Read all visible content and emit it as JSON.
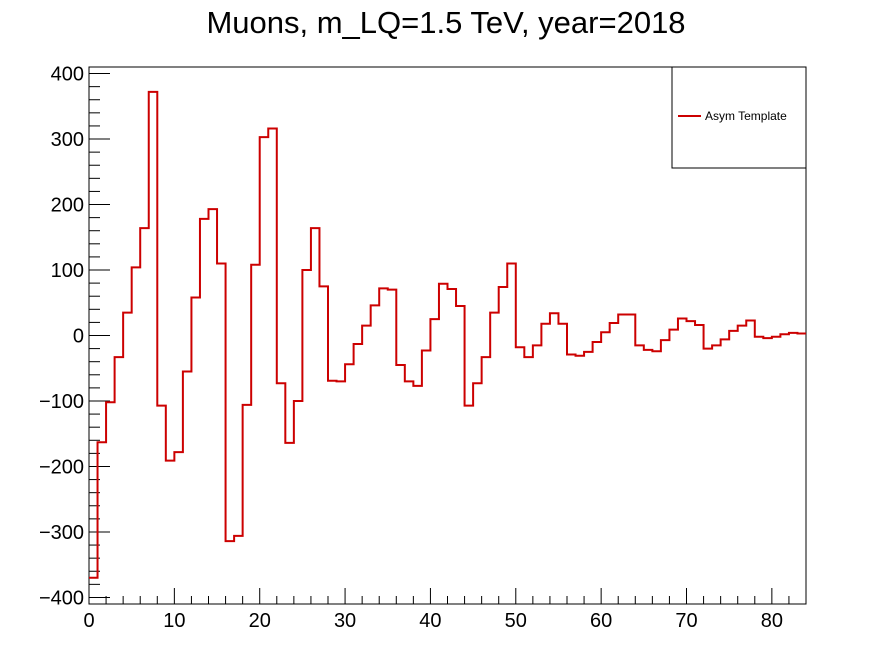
{
  "chart_data": {
    "type": "histogram-step",
    "title": "Muons, m_LQ=1.5 TeV, year=2018",
    "xlabel": "",
    "ylabel": "",
    "xlim": [
      0,
      84
    ],
    "ylim": [
      -410,
      410
    ],
    "x_ticks": [
      0,
      10,
      20,
      30,
      40,
      50,
      60,
      70,
      80
    ],
    "y_ticks": [
      -400,
      -300,
      -200,
      -100,
      0,
      100,
      200,
      300,
      400
    ],
    "y_tick_labels": [
      "−400",
      "−300",
      "−200",
      "−100",
      "0",
      "100",
      "200",
      "300",
      "400"
    ],
    "bin_width": 1,
    "series": [
      {
        "name": "Asym Template",
        "color": "#cc0000",
        "bin_edges_start": 0,
        "values": [
          -370,
          -163,
          -102,
          -33,
          35,
          104,
          164,
          372,
          -107,
          -191,
          -178,
          -55,
          58,
          178,
          193,
          110,
          -314,
          -306,
          -106,
          108,
          303,
          316,
          -73,
          -164,
          -100,
          100,
          164,
          75,
          -69,
          -70,
          -44,
          -13,
          15,
          46,
          72,
          70,
          -45,
          -70,
          -77,
          -23,
          25,
          79,
          71,
          45,
          -107,
          -73,
          -33,
          35,
          74,
          110,
          -18,
          -33,
          -15,
          18,
          34,
          18,
          -29,
          -31,
          -25,
          -10,
          5,
          19,
          32,
          32,
          -15,
          -22,
          -24,
          -7,
          9,
          26,
          22,
          16,
          -20,
          -15,
          -6,
          7,
          15,
          23,
          -2,
          -4,
          -2,
          2,
          4,
          3
        ]
      }
    ],
    "legend": {
      "placement": "top-right",
      "entries": [
        "Asym Template"
      ]
    }
  }
}
